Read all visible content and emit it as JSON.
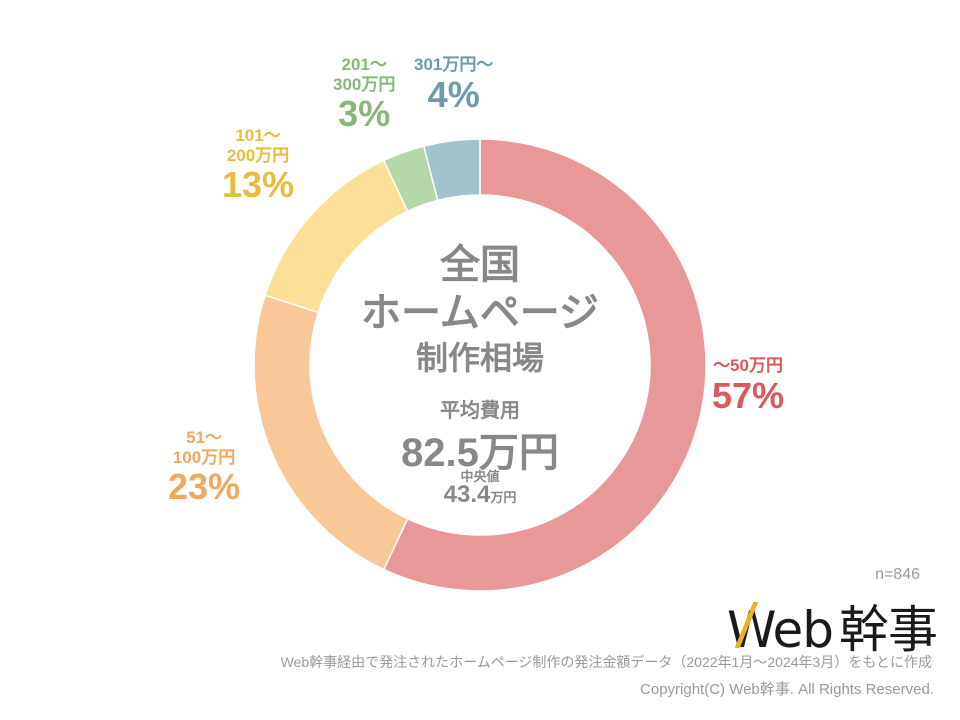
{
  "chart_data": {
    "type": "pie",
    "subtype": "donut",
    "title": "全国ホームページ制作相場",
    "categories": [
      "〜50万円",
      "51〜100万円",
      "101〜200万円",
      "201〜300万円",
      "301万円〜"
    ],
    "values": [
      57,
      23,
      13,
      3,
      4
    ],
    "unit": "%",
    "colors": [
      "#E99898",
      "#F8C898",
      "#FCE098",
      "#B4D8A8",
      "#A0C4CC"
    ],
    "label_colors": [
      "#D9595C",
      "#F0A860",
      "#E8BC3C",
      "#88B878",
      "#6C9CAC"
    ],
    "start_angle": "top, clockwise",
    "center_text": {
      "average_label": "平均費用",
      "average_value": "82.5万円",
      "median_label": "中央値",
      "median_value": "43.4万円"
    },
    "sample_size": "n=846"
  },
  "center": {
    "title_line1": "全国",
    "title_line2": "ホームページ",
    "title_line3": "制作相場",
    "average_label": "平均費用",
    "average_number": "82.5",
    "average_unit": "万円",
    "median_label": "中央値",
    "median_number": "43.4",
    "median_unit": "万円"
  },
  "labels": {
    "seg1": {
      "range": "〜50万円",
      "pct": "57%"
    },
    "seg2": {
      "range_line1": "51〜",
      "range_line2": "100万円",
      "pct": "23%"
    },
    "seg3": {
      "range_line1": "101〜",
      "range_line2": "200万円",
      "pct": "13%"
    },
    "seg4": {
      "range_line1": "201〜",
      "range_line2": "300万円",
      "pct": "3%"
    },
    "seg5": {
      "range": "301万円〜",
      "pct": "4%"
    }
  },
  "sample": "n=846",
  "logo": {
    "latin": "Web",
    "kanji": "幹事"
  },
  "footer": {
    "source": "Web幹事経由で発注されたホームページ制作の発注金額データ（2022年1月〜2024年3月）をもとに作成",
    "copyright": "Copyright(C) Web幹事. All Rights Reserved."
  }
}
